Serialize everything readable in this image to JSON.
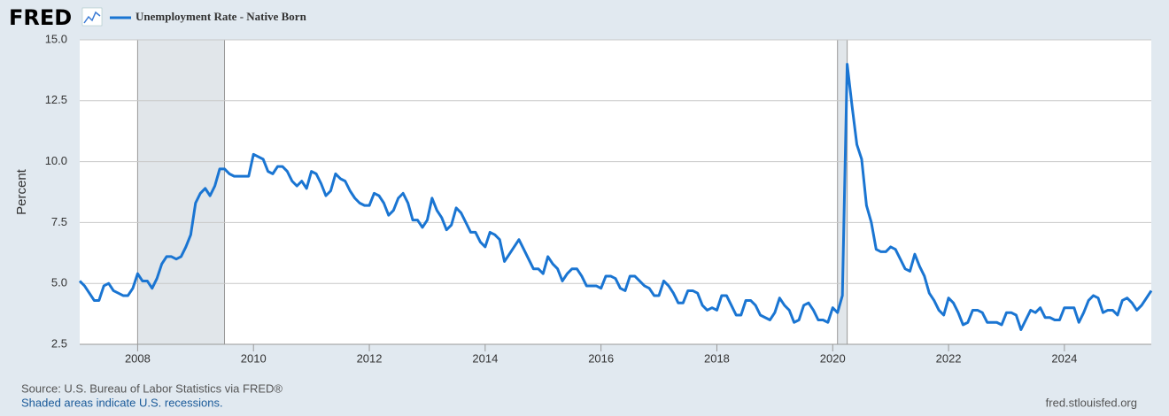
{
  "header": {
    "logo": "FRED"
  },
  "footer": {
    "source": "Source: U.S. Bureau of Labor Statistics via FRED®",
    "note": "Shaded areas indicate U.S. recessions.",
    "url": "fred.stlouisfed.org"
  },
  "chart_data": {
    "type": "line",
    "y_label": "Percent",
    "grid": true,
    "xlim": [
      2007,
      2025.5
    ],
    "xticks": [
      2008,
      2010,
      2012,
      2014,
      2016,
      2018,
      2020,
      2022,
      2024
    ],
    "ylim": [
      2.5,
      15
    ],
    "yticks": [
      {
        "value": 2.5,
        "label": "2.5"
      },
      {
        "value": 5,
        "label": "5.0"
      },
      7.5,
      {
        "value": 10,
        "label": "10.0"
      },
      12.5,
      {
        "value": 15,
        "label": "15.0"
      }
    ],
    "recessions": [
      [
        2008,
        2009.5
      ],
      [
        2020.083,
        2020.25
      ]
    ],
    "recession_color": "#e1e6ea",
    "x": [
      2007,
      2007.083,
      2007.167,
      2007.25,
      2007.333,
      2007.417,
      2007.5,
      2007.583,
      2007.667,
      2007.75,
      2007.833,
      2007.917,
      2008,
      2008.083,
      2008.167,
      2008.25,
      2008.333,
      2008.417,
      2008.5,
      2008.583,
      2008.667,
      2008.75,
      2008.833,
      2008.917,
      2009,
      2009.083,
      2009.167,
      2009.25,
      2009.333,
      2009.417,
      2009.5,
      2009.583,
      2009.667,
      2009.75,
      2009.833,
      2009.917,
      2010,
      2010.083,
      2010.167,
      2010.25,
      2010.333,
      2010.417,
      2010.5,
      2010.583,
      2010.667,
      2010.75,
      2010.833,
      2010.917,
      2011,
      2011.083,
      2011.167,
      2011.25,
      2011.333,
      2011.417,
      2011.5,
      2011.583,
      2011.667,
      2011.75,
      2011.833,
      2011.917,
      2012,
      2012.083,
      2012.167,
      2012.25,
      2012.333,
      2012.417,
      2012.5,
      2012.583,
      2012.667,
      2012.75,
      2012.833,
      2012.917,
      2013,
      2013.083,
      2013.167,
      2013.25,
      2013.333,
      2013.417,
      2013.5,
      2013.583,
      2013.667,
      2013.75,
      2013.833,
      2013.917,
      2014,
      2014.083,
      2014.167,
      2014.25,
      2014.333,
      2014.417,
      2014.5,
      2014.583,
      2014.667,
      2014.75,
      2014.833,
      2014.917,
      2015,
      2015.083,
      2015.167,
      2015.25,
      2015.333,
      2015.417,
      2015.5,
      2015.583,
      2015.667,
      2015.75,
      2015.833,
      2015.917,
      2016,
      2016.083,
      2016.167,
      2016.25,
      2016.333,
      2016.417,
      2016.5,
      2016.583,
      2016.667,
      2016.75,
      2016.833,
      2016.917,
      2017,
      2017.083,
      2017.167,
      2017.25,
      2017.333,
      2017.417,
      2017.5,
      2017.583,
      2017.667,
      2017.75,
      2017.833,
      2017.917,
      2018,
      2018.083,
      2018.167,
      2018.25,
      2018.333,
      2018.417,
      2018.5,
      2018.583,
      2018.667,
      2018.75,
      2018.833,
      2018.917,
      2019,
      2019.083,
      2019.167,
      2019.25,
      2019.333,
      2019.417,
      2019.5,
      2019.583,
      2019.667,
      2019.75,
      2019.833,
      2019.917,
      2020,
      2020.083,
      2020.167,
      2020.25,
      2020.333,
      2020.417,
      2020.5,
      2020.583,
      2020.667,
      2020.75,
      2020.833,
      2020.917,
      2021,
      2021.083,
      2021.167,
      2021.25,
      2021.333,
      2021.417,
      2021.5,
      2021.583,
      2021.667,
      2021.75,
      2021.833,
      2021.917,
      2022,
      2022.083,
      2022.167,
      2022.25,
      2022.333,
      2022.417,
      2022.5,
      2022.583,
      2022.667,
      2022.75,
      2022.833,
      2022.917,
      2023,
      2023.083,
      2023.167,
      2023.25,
      2023.333,
      2023.417,
      2023.5,
      2023.583,
      2023.667,
      2023.75,
      2023.833,
      2023.917,
      2024,
      2024.083,
      2024.167,
      2024.25,
      2024.333,
      2024.417,
      2024.5,
      2024.583,
      2024.667,
      2024.75,
      2024.833,
      2024.917,
      2025,
      2025.083,
      2025.167,
      2025.25,
      2025.333,
      2025.417,
      2025.5
    ],
    "series": [
      {
        "name": "Unemployment Rate - Native Born",
        "color": "#1a75d2",
        "values": [
          5.1,
          4.9,
          4.6,
          4.3,
          4.3,
          4.9,
          5.0,
          4.7,
          4.6,
          4.5,
          4.5,
          4.8,
          5.4,
          5.1,
          5.1,
          4.8,
          5.2,
          5.8,
          6.1,
          6.1,
          6.0,
          6.1,
          6.5,
          7.0,
          8.3,
          8.7,
          8.9,
          8.6,
          9.0,
          9.7,
          9.7,
          9.5,
          9.4,
          9.4,
          9.4,
          9.4,
          10.3,
          10.2,
          10.1,
          9.6,
          9.5,
          9.8,
          9.8,
          9.6,
          9.2,
          9.0,
          9.2,
          8.9,
          9.6,
          9.5,
          9.1,
          8.6,
          8.8,
          9.5,
          9.3,
          9.2,
          8.8,
          8.5,
          8.3,
          8.2,
          8.2,
          8.7,
          8.6,
          8.3,
          7.8,
          8.0,
          8.5,
          8.7,
          8.3,
          7.6,
          7.6,
          7.3,
          7.6,
          8.5,
          8.0,
          7.7,
          7.2,
          7.4,
          8.1,
          7.9,
          7.5,
          7.1,
          7.1,
          6.7,
          6.5,
          7.1,
          7.0,
          6.8,
          5.9,
          6.2,
          6.5,
          6.8,
          6.4,
          6.0,
          5.6,
          5.6,
          5.4,
          6.1,
          5.8,
          5.6,
          5.1,
          5.4,
          5.6,
          5.6,
          5.3,
          4.9,
          4.9,
          4.9,
          4.8,
          5.3,
          5.3,
          5.2,
          4.8,
          4.7,
          5.3,
          5.3,
          5.1,
          4.9,
          4.8,
          4.5,
          4.5,
          5.1,
          4.9,
          4.6,
          4.2,
          4.2,
          4.7,
          4.7,
          4.6,
          4.1,
          3.9,
          4.0,
          3.9,
          4.5,
          4.5,
          4.1,
          3.7,
          3.7,
          4.3,
          4.3,
          4.1,
          3.7,
          3.6,
          3.5,
          3.8,
          4.4,
          4.1,
          3.9,
          3.4,
          3.5,
          4.1,
          4.2,
          3.9,
          3.5,
          3.5,
          3.4,
          4.0,
          3.8,
          4.5,
          14.0,
          12.3,
          10.7,
          10.1,
          8.2,
          7.5,
          6.4,
          6.3,
          6.3,
          6.5,
          6.4,
          6.0,
          5.6,
          5.5,
          6.2,
          5.7,
          5.3,
          4.6,
          4.3,
          3.9,
          3.7,
          4.4,
          4.2,
          3.8,
          3.3,
          3.4,
          3.9,
          3.9,
          3.8,
          3.4,
          3.4,
          3.4,
          3.3,
          3.8,
          3.8,
          3.7,
          3.1,
          3.5,
          3.9,
          3.8,
          4.0,
          3.6,
          3.6,
          3.5,
          3.5,
          4.0,
          4.0,
          4.0,
          3.4,
          3.8,
          4.3,
          4.5,
          4.4,
          3.8,
          3.9,
          3.9,
          3.7,
          4.3,
          4.4,
          4.2,
          3.9,
          4.1,
          4.4,
          4.7
        ]
      }
    ]
  }
}
